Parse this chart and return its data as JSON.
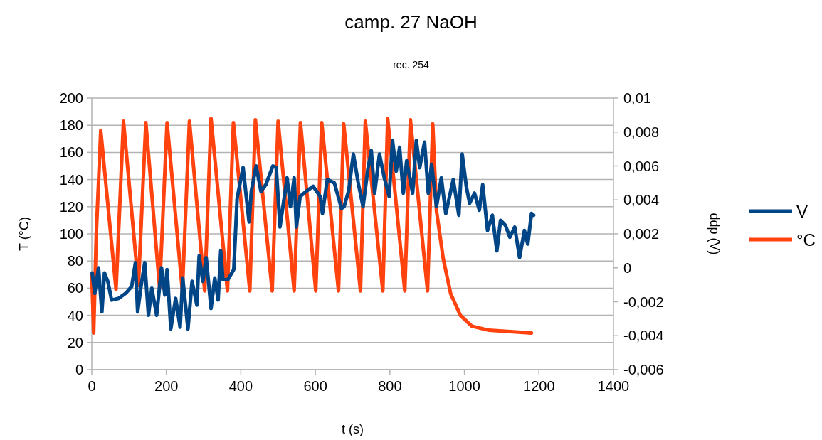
{
  "chart_data": {
    "type": "line",
    "title": "camp. 27 NaOH",
    "subtitle": "rec. 254",
    "xlabel": "t (s)",
    "ylabel": "T (°C)",
    "y2label": "ddp (V)",
    "xlim": [
      0,
      1400
    ],
    "xticks": [
      0,
      200,
      400,
      600,
      800,
      1000,
      1200,
      1400
    ],
    "ylim": [
      0,
      200
    ],
    "yticks": [
      0,
      20,
      40,
      60,
      80,
      100,
      120,
      140,
      160,
      180,
      200
    ],
    "y2lim": [
      -0.006,
      0.01
    ],
    "y2ticks": [
      {
        "value": -0.006,
        "label": "-0,006"
      },
      {
        "value": -0.004,
        "label": "-0,004"
      },
      {
        "value": -0.002,
        "label": "-0,002"
      },
      {
        "value": 0,
        "label": "0"
      },
      {
        "value": 0.002,
        "label": "0,002"
      },
      {
        "value": 0.004,
        "label": "0,004"
      },
      {
        "value": 0.006,
        "label": "0,006"
      },
      {
        "value": 0.008,
        "label": "0,008"
      },
      {
        "value": 0.01,
        "label": "0,01"
      }
    ],
    "grid": "y",
    "legend": "right",
    "marker": "none",
    "line_style": "solid",
    "series": [
      {
        "name": "V",
        "color": "#004586",
        "axis": "y2",
        "x": [
          1,
          8,
          18,
          27,
          34,
          43,
          53,
          72,
          91,
          107,
          117,
          123,
          132,
          142,
          152,
          161,
          174,
          187,
          196,
          202,
          212,
          225,
          237,
          244,
          258,
          269,
          282,
          288,
          298,
          307,
          320,
          330,
          339,
          346,
          352,
          365,
          381,
          390,
          406,
          416,
          422,
          428,
          441,
          454,
          467,
          486,
          495,
          505,
          524,
          533,
          543,
          549,
          559,
          575,
          594,
          613,
          619,
          632,
          651,
          670,
          677,
          689,
          702,
          715,
          728,
          740,
          750,
          759,
          772,
          785,
          798,
          807,
          817,
          826,
          836,
          845,
          861,
          871,
          880,
          893,
          903,
          912,
          925,
          938,
          950,
          970,
          985,
          994,
          1005,
          1014,
          1027,
          1040,
          1049,
          1062,
          1075,
          1087,
          1097,
          1110,
          1122,
          1135,
          1148,
          1161,
          1170,
          1180,
          1186
        ],
        "values": [
          -0.0003,
          -0.0015,
          0.0,
          -0.0026,
          -0.0003,
          -0.0008,
          -0.0019,
          -0.0018,
          -0.0015,
          -0.0011,
          0.0003,
          -0.0026,
          -0.0011,
          0.0003,
          -0.0028,
          -0.0012,
          -0.0028,
          0.0,
          -0.0016,
          -0.0001,
          -0.0036,
          -0.0018,
          -0.0035,
          -0.0006,
          -0.0036,
          -0.0008,
          -0.0022,
          0.0007,
          -0.0008,
          0.0006,
          -0.0024,
          -0.0006,
          -0.0019,
          0.001,
          -0.0007,
          -0.0007,
          -0.0001,
          0.0041,
          0.0059,
          0.0039,
          0.0027,
          0.0045,
          0.006,
          0.0045,
          0.0049,
          0.006,
          0.0059,
          0.0024,
          0.0053,
          0.0036,
          0.0053,
          0.0024,
          0.0042,
          0.0045,
          0.0048,
          0.0042,
          0.0032,
          0.0052,
          0.005,
          0.0035,
          0.0036,
          0.0045,
          0.0067,
          0.005,
          0.0036,
          0.0057,
          0.0069,
          0.0044,
          0.0067,
          0.0053,
          0.0042,
          0.0075,
          0.0057,
          0.0071,
          0.0044,
          0.0063,
          0.0044,
          0.0075,
          0.0059,
          0.0074,
          0.0044,
          0.0061,
          0.0036,
          0.0053,
          0.0032,
          0.0052,
          0.0031,
          0.0067,
          0.0048,
          0.0038,
          0.0044,
          0.0034,
          0.0049,
          0.0022,
          0.0031,
          0.001,
          0.0028,
          0.0025,
          0.0018,
          0.0024,
          0.0006,
          0.0022,
          0.0014,
          0.0032,
          0.0031
        ]
      },
      {
        "name": "°C",
        "color": "#ff420e",
        "x": [
          0,
          5,
          12,
          24,
          65,
          85,
          125,
          145,
          182,
          202,
          243,
          262,
          303,
          320,
          364,
          380,
          424,
          439,
          484,
          500,
          543,
          560,
          601,
          617,
          662,
          676,
          721,
          734,
          781,
          794,
          840,
          855,
          901,
          915,
          925,
          943,
          963,
          989,
          1020,
          1066,
          1180
        ],
        "values": [
          70,
          27,
          100,
          176,
          59,
          183,
          62,
          182,
          60,
          182,
          58,
          183,
          58,
          185,
          58,
          182,
          58,
          184,
          58,
          183,
          58,
          182,
          58,
          182,
          58,
          181,
          58,
          183,
          58,
          185,
          58,
          184,
          58,
          181,
          117,
          82,
          56,
          40,
          32,
          29,
          27
        ]
      }
    ]
  }
}
